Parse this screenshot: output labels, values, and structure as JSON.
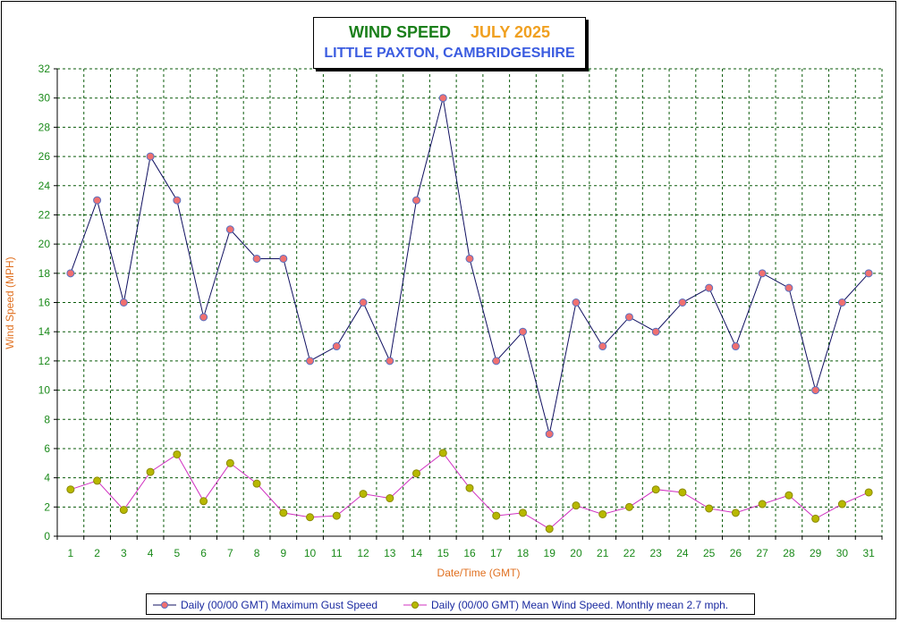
{
  "header": {
    "title": "WIND SPEED",
    "period": "JULY 2025",
    "subtitle": "LITTLE PAXTON, CAMBRIDGESHIRE"
  },
  "colors": {
    "title": "#1a7f1a",
    "period": "#f0a020",
    "subtitle": "#3b5ce0",
    "grid": "#0a5a0a",
    "tick_text": "#1a8a1a",
    "axis_label": "#e07020",
    "gust_line": "#101060",
    "gust_marker": "#f07070",
    "mean_line": "#d030c0",
    "mean_marker": "#b8b800"
  },
  "chart_data": {
    "type": "line",
    "title": "WIND SPEED JULY 2025",
    "subtitle": "LITTLE PAXTON, CAMBRIDGESHIRE",
    "xlabel": "Date/Time (GMT)",
    "ylabel": "Wind Speed (MPH)",
    "ylim": [
      0,
      32
    ],
    "xlim": [
      0.5,
      31.5
    ],
    "yticks": [
      0,
      2,
      4,
      6,
      8,
      10,
      12,
      14,
      16,
      18,
      20,
      22,
      24,
      26,
      28,
      30,
      32
    ],
    "categories": [
      "1",
      "2",
      "3",
      "4",
      "5",
      "6",
      "7",
      "8",
      "9",
      "10",
      "11",
      "12",
      "13",
      "14",
      "15",
      "16",
      "17",
      "18",
      "19",
      "20",
      "21",
      "22",
      "23",
      "24",
      "25",
      "26",
      "27",
      "28",
      "29",
      "30",
      "31"
    ],
    "grid": true,
    "legend_position": "bottom",
    "series": [
      {
        "name": "Daily (00/00 GMT) Maximum Gust Speed",
        "values": [
          18,
          23,
          16,
          26,
          23,
          15,
          21,
          19,
          19,
          12,
          13,
          16,
          12,
          23,
          30,
          19,
          12,
          14,
          7,
          16,
          13,
          15,
          14,
          16,
          17,
          13,
          18,
          17,
          10,
          16,
          18
        ]
      },
      {
        "name": "Daily (00/00 GMT) Mean Wind Speed. Monthly mean 2.7 mph.",
        "values": [
          3.2,
          3.8,
          1.8,
          4.4,
          5.6,
          2.4,
          5.0,
          3.6,
          1.6,
          1.3,
          1.4,
          2.9,
          2.6,
          4.3,
          5.7,
          3.3,
          1.4,
          1.6,
          0.5,
          2.1,
          1.5,
          2.0,
          3.2,
          3.0,
          1.9,
          1.6,
          2.2,
          2.8,
          1.2,
          2.2,
          3.0
        ]
      }
    ]
  }
}
